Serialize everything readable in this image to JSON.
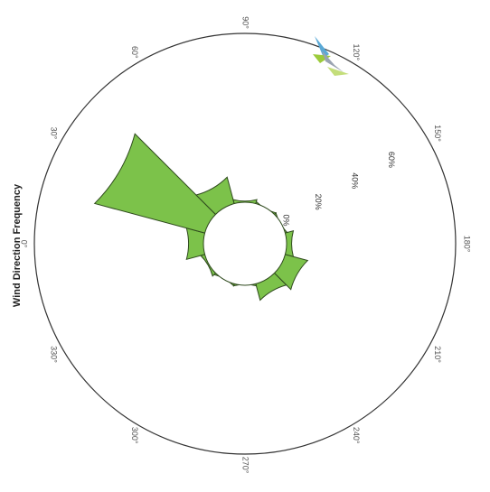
{
  "chart_data": {
    "type": "polar-bar",
    "title": "Wind Direction Frequency",
    "angle_unit": "°",
    "angle_ticks": [
      {
        "angle": 0,
        "label": "0°"
      },
      {
        "angle": 30,
        "label": "30°"
      },
      {
        "angle": 60,
        "label": "60°"
      },
      {
        "angle": 90,
        "label": "90°"
      },
      {
        "angle": 120,
        "label": "120°"
      },
      {
        "angle": 150,
        "label": "150°"
      },
      {
        "angle": 180,
        "label": "180°"
      },
      {
        "angle": 210,
        "label": "210°"
      },
      {
        "angle": 240,
        "label": "240°"
      },
      {
        "angle": 270,
        "label": "270°"
      },
      {
        "angle": 300,
        "label": "300°"
      },
      {
        "angle": 330,
        "label": "330°"
      }
    ],
    "radial_ticks": [
      {
        "value": 0,
        "label": "0%"
      },
      {
        "value": 20,
        "label": "20%"
      },
      {
        "value": 40,
        "label": "40%"
      },
      {
        "value": 60,
        "label": "60%"
      }
    ],
    "radial_max": 80,
    "bins": [
      {
        "direction": 0,
        "value": 9
      },
      {
        "direction": 30,
        "value": 54
      },
      {
        "direction": 60,
        "value": 13
      },
      {
        "direction": 90,
        "value": 2
      },
      {
        "direction": 120,
        "value": 1
      },
      {
        "direction": 150,
        "value": 1
      },
      {
        "direction": 180,
        "value": 4
      },
      {
        "direction": 210,
        "value": 11
      },
      {
        "direction": 240,
        "value": 8
      },
      {
        "direction": 270,
        "value": 1
      },
      {
        "direction": 300,
        "value": 1
      },
      {
        "direction": 330,
        "value": 2
      }
    ],
    "bar_color": "#7cc24a",
    "bar_edge_color": "#2f4a1e"
  },
  "logo": {
    "colors": [
      "#5aa9d6",
      "#9ccb3b",
      "#9aa3b2"
    ]
  }
}
